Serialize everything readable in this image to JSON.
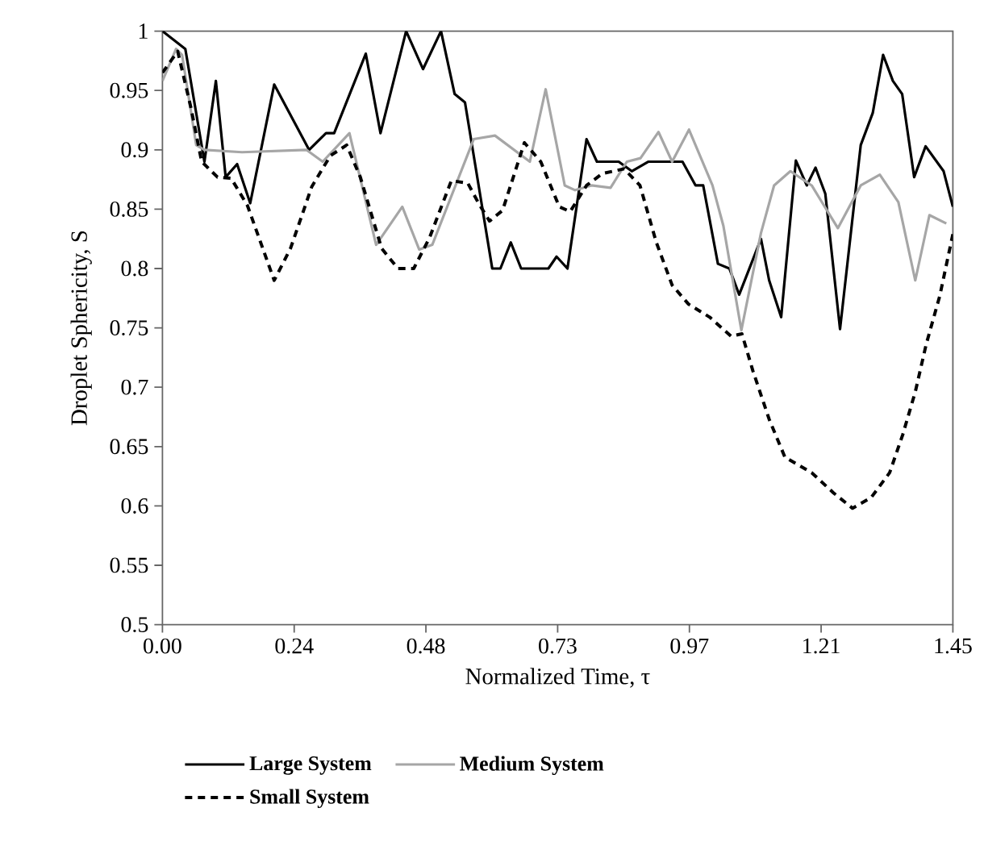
{
  "chart_data": {
    "type": "line",
    "xlabel": "Normalized Time, τ",
    "ylabel": "Droplet Sphericity, S",
    "xlim": [
      0,
      1.45
    ],
    "ylim": [
      0.5,
      1
    ],
    "xticks": [
      {
        "value": 0,
        "label": "0.00"
      },
      {
        "value": 0.2417,
        "label": "0.24"
      },
      {
        "value": 0.4833,
        "label": "0.48"
      },
      {
        "value": 0.725,
        "label": "0.73"
      },
      {
        "value": 0.9667,
        "label": "0.97"
      },
      {
        "value": 1.2083,
        "label": "1.21"
      },
      {
        "value": 1.45,
        "label": "1.45"
      }
    ],
    "yticks": [
      0.5,
      0.55,
      0.6,
      0.65,
      0.7,
      0.75,
      0.8,
      0.85,
      0.9,
      0.95,
      1
    ],
    "grid": false,
    "legend": "bottom",
    "marker": "none",
    "series": [
      {
        "name": "Large System",
        "color": "#000000",
        "line_style": "solid",
        "x": [
          0,
          0.042,
          0.077,
          0.098,
          0.116,
          0.137,
          0.161,
          0.205,
          0.269,
          0.3,
          0.315,
          0.373,
          0.4,
          0.447,
          0.478,
          0.511,
          0.536,
          0.555,
          0.605,
          0.62,
          0.639,
          0.658,
          0.708,
          0.723,
          0.743,
          0.778,
          0.797,
          0.837,
          0.861,
          0.891,
          0.954,
          0.978,
          0.992,
          1.019,
          1.04,
          1.058,
          1.098,
          1.113,
          1.135,
          1.162,
          1.182,
          1.198,
          1.216,
          1.243,
          1.281,
          1.303,
          1.322,
          1.34,
          1.357,
          1.379,
          1.4,
          1.433,
          1.45
        ],
        "values": [
          1.0,
          0.985,
          0.89,
          0.958,
          0.877,
          0.888,
          0.855,
          0.955,
          0.9,
          0.914,
          0.914,
          0.981,
          0.914,
          1.0,
          0.968,
          1.0,
          0.947,
          0.94,
          0.8,
          0.8,
          0.822,
          0.8,
          0.8,
          0.81,
          0.8,
          0.909,
          0.89,
          0.89,
          0.882,
          0.89,
          0.89,
          0.87,
          0.87,
          0.804,
          0.8,
          0.778,
          0.825,
          0.79,
          0.759,
          0.891,
          0.87,
          0.885,
          0.863,
          0.749,
          0.904,
          0.931,
          0.98,
          0.958,
          0.947,
          0.877,
          0.903,
          0.882,
          0.852
        ]
      },
      {
        "name": "Medium System",
        "color": "#a6a6a6",
        "line_style": "solid",
        "x": [
          0,
          0.025,
          0.036,
          0.062,
          0.077,
          0.146,
          0.264,
          0.294,
          0.343,
          0.392,
          0.44,
          0.471,
          0.495,
          0.571,
          0.61,
          0.674,
          0.703,
          0.738,
          0.757,
          0.787,
          0.822,
          0.852,
          0.877,
          0.91,
          0.935,
          0.966,
          1.009,
          1.029,
          1.062,
          1.098,
          1.122,
          1.152,
          1.191,
          1.239,
          1.281,
          1.316,
          1.35,
          1.381,
          1.407,
          1.438
        ],
        "values": [
          0.958,
          0.985,
          0.98,
          0.904,
          0.9,
          0.898,
          0.9,
          0.89,
          0.914,
          0.82,
          0.852,
          0.816,
          0.82,
          0.909,
          0.912,
          0.89,
          0.951,
          0.87,
          0.866,
          0.87,
          0.868,
          0.89,
          0.893,
          0.915,
          0.89,
          0.917,
          0.87,
          0.836,
          0.748,
          0.83,
          0.87,
          0.882,
          0.87,
          0.834,
          0.87,
          0.879,
          0.856,
          0.79,
          0.845,
          0.838
        ]
      },
      {
        "name": "Small System",
        "color": "#000000",
        "line_style": "dashed",
        "x": [
          0,
          0.028,
          0.052,
          0.072,
          0.101,
          0.126,
          0.156,
          0.205,
          0.235,
          0.274,
          0.308,
          0.338,
          0.363,
          0.402,
          0.432,
          0.461,
          0.49,
          0.53,
          0.56,
          0.58,
          0.6,
          0.624,
          0.664,
          0.694,
          0.728,
          0.748,
          0.778,
          0.807,
          0.847,
          0.876,
          0.906,
          0.935,
          0.965,
          1.004,
          1.043,
          1.063,
          1.083,
          1.113,
          1.142,
          1.191,
          1.231,
          1.266,
          1.3,
          1.334,
          1.358,
          1.381,
          1.401,
          1.426,
          1.45
        ],
        "values": [
          0.965,
          0.983,
          0.936,
          0.89,
          0.877,
          0.876,
          0.853,
          0.79,
          0.817,
          0.869,
          0.895,
          0.904,
          0.877,
          0.817,
          0.8,
          0.8,
          0.826,
          0.874,
          0.872,
          0.855,
          0.84,
          0.849,
          0.906,
          0.89,
          0.852,
          0.848,
          0.87,
          0.88,
          0.884,
          0.87,
          0.822,
          0.786,
          0.77,
          0.759,
          0.743,
          0.745,
          0.714,
          0.673,
          0.641,
          0.628,
          0.611,
          0.598,
          0.607,
          0.628,
          0.66,
          0.696,
          0.736,
          0.777,
          0.829
        ]
      }
    ]
  }
}
